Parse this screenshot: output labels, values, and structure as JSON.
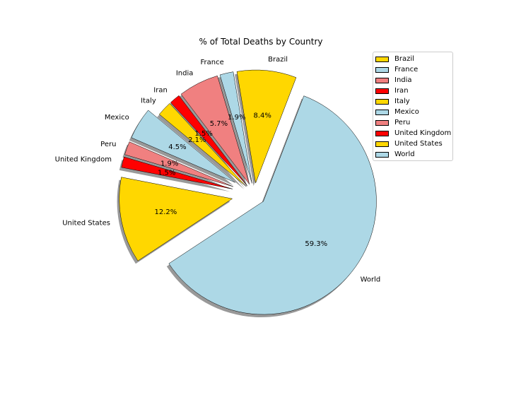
{
  "chart_data": {
    "type": "pie",
    "title": "% of Total Deaths by Country",
    "labels": [
      "Brazil",
      "France",
      "India",
      "Iran",
      "Italy",
      "Mexico",
      "Peru",
      "United Kingdom",
      "United States",
      "World"
    ],
    "values": [
      8.4,
      1.9,
      5.7,
      1.5,
      2.1,
      4.5,
      1.9,
      1.5,
      12.2,
      59.3
    ],
    "value_labels": [
      "8.4%",
      "1.9%",
      "5.7%",
      "1.5%",
      "2.1%",
      "4.5%",
      "1.9%",
      "1.5%",
      "12.2%",
      "59.3%"
    ],
    "colors": [
      "#ffd700",
      "#add8e6",
      "#f08080",
      "#ff0000",
      "#ffd700",
      "#add8e6",
      "#f08080",
      "#ff0000",
      "#ffd700",
      "#add8e6"
    ],
    "explode": [
      0.1,
      0.1,
      0.1,
      0.1,
      0.1,
      0.2,
      0.2,
      0.2,
      0.2,
      0.1
    ],
    "shadow": true,
    "legend_position": "top-right"
  }
}
